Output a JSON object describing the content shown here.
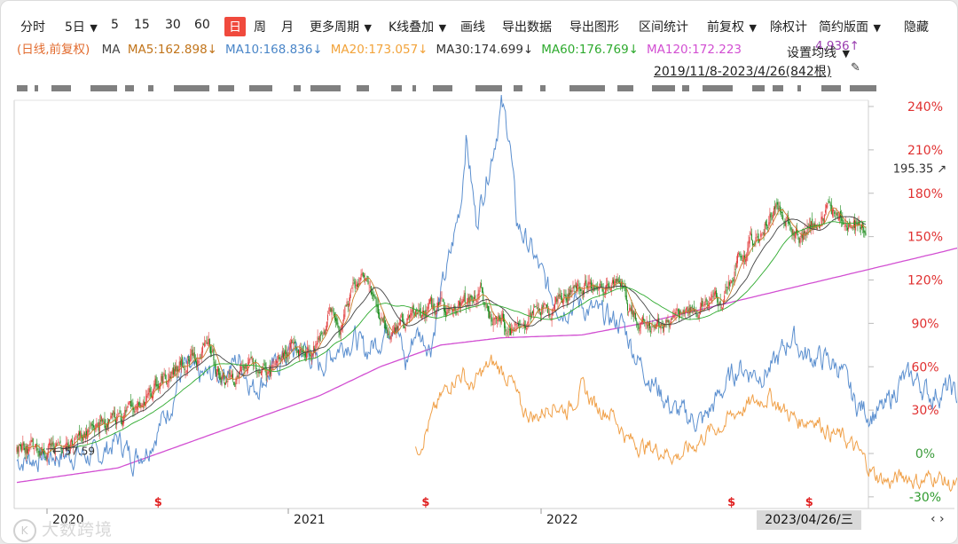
{
  "toolbar": {
    "items": [
      {
        "label": "分时",
        "dd": false,
        "active": false
      },
      {
        "label": "5日",
        "dd": true,
        "active": false
      },
      {
        "label": "5",
        "dd": false,
        "active": false
      },
      {
        "label": "15",
        "dd": false,
        "active": false
      },
      {
        "label": "30",
        "dd": false,
        "active": false
      },
      {
        "label": "60",
        "dd": false,
        "active": false
      },
      {
        "label": "日",
        "dd": false,
        "active": true
      },
      {
        "label": "周",
        "dd": false,
        "active": false
      },
      {
        "label": "月",
        "dd": false,
        "active": false
      },
      {
        "label": "更多周期",
        "dd": true,
        "active": false
      },
      {
        "label": "K线叠加",
        "dd": true,
        "active": false
      },
      {
        "label": "画线",
        "dd": false,
        "active": false
      },
      {
        "label": "导出数据",
        "dd": false,
        "active": false
      },
      {
        "label": "导出图形",
        "dd": false,
        "active": false
      },
      {
        "label": "区间统计",
        "dd": false,
        "active": false
      },
      {
        "label": "前复权",
        "dd": true,
        "active": false
      },
      {
        "label": "除权计",
        "dd": false,
        "active": false
      },
      {
        "label": "简约版面",
        "dd": true,
        "active": false
      },
      {
        "label": "隐藏",
        "dd": false,
        "active": false
      }
    ]
  },
  "indicators": {
    "mode": "(日线,前复权)",
    "ma_label": "MA",
    "items": [
      {
        "text": "MA5:162.898↓",
        "color": "#c1741a"
      },
      {
        "text": "MA10:168.836↓",
        "color": "#4a86c8"
      },
      {
        "text": "MA20:173.057↓",
        "color": "#f2a33a"
      },
      {
        "text": "MA30:174.699↓",
        "color": "#333333"
      },
      {
        "text": "MA60:176.769↓",
        "color": "#2eaa2e"
      },
      {
        "text": "MA120:172.223",
        "color": "#d24fd2"
      }
    ],
    "ma_tail": "4.936↑",
    "tail_color": "#9a3fb0",
    "set_ma": "设置均线",
    "range": "2019/11/8-2023/4/26(842根)",
    "pin_icon": "📌"
  },
  "colors": {
    "up": "#e23c3c",
    "down": "#1a8a1a",
    "overlay1": "#5b8fcf",
    "overlay2": "#f0a048",
    "ma120": "#d24fd2",
    "grid": "#e2e2e2"
  },
  "chart_data": {
    "type": "line",
    "title": "",
    "ylabel": "",
    "ytick_labels": [
      "240%",
      "210%",
      "180%",
      "150%",
      "120%",
      "90%",
      "60%",
      "30%",
      "0%",
      "-30%"
    ],
    "yticks": [
      240,
      210,
      180,
      150,
      120,
      90,
      60,
      30,
      0,
      -30
    ],
    "ylim": [
      -35,
      250
    ],
    "xtick_labels": [
      "2020",
      "2021",
      "2022"
    ],
    "bars": 842,
    "annotations": {
      "high": "195.35",
      "low": "57.59"
    },
    "dividend_marks": [
      {
        "label": "$",
        "bar": 140
      },
      {
        "label": "$",
        "bar": 405
      },
      {
        "label": "$",
        "bar": 708
      },
      {
        "label": "$",
        "bar": 785
      }
    ],
    "series": [
      {
        "name": "main",
        "kind": "candlestick",
        "keypoints": [
          [
            0,
            2
          ],
          [
            40,
            4
          ],
          [
            80,
            20
          ],
          [
            120,
            28
          ],
          [
            150,
            55
          ],
          [
            170,
            65
          ],
          [
            190,
            72
          ],
          [
            205,
            48
          ],
          [
            235,
            62
          ],
          [
            250,
            55
          ],
          [
            270,
            72
          ],
          [
            290,
            70
          ],
          [
            310,
            95
          ],
          [
            320,
            90
          ],
          [
            330,
            110
          ],
          [
            345,
            120
          ],
          [
            355,
            103
          ],
          [
            370,
            85
          ],
          [
            390,
            92
          ],
          [
            410,
            98
          ],
          [
            430,
            100
          ],
          [
            445,
            105
          ],
          [
            460,
            110
          ],
          [
            470,
            97
          ],
          [
            490,
            85
          ],
          [
            500,
            90
          ],
          [
            520,
            100
          ],
          [
            540,
            105
          ],
          [
            560,
            120
          ],
          [
            580,
            112
          ],
          [
            595,
            125
          ],
          [
            608,
            95
          ],
          [
            620,
            88
          ],
          [
            635,
            90
          ],
          [
            650,
            92
          ],
          [
            670,
            100
          ],
          [
            685,
            102
          ],
          [
            700,
            110
          ],
          [
            715,
            135
          ],
          [
            735,
            150
          ],
          [
            750,
            172
          ],
          [
            760,
            165
          ],
          [
            775,
            150
          ],
          [
            790,
            160
          ],
          [
            805,
            165
          ],
          [
            820,
            160
          ],
          [
            835,
            158
          ],
          [
            850,
            155
          ],
          [
            865,
            158
          ],
          [
            880,
            165
          ],
          [
            895,
            170
          ],
          [
            910,
            190
          ],
          [
            925,
            180
          ],
          [
            940,
            175
          ],
          [
            955,
            168
          ],
          [
            975,
            140
          ]
        ]
      },
      {
        "name": "overlay1",
        "kind": "line",
        "keypoints": [
          [
            0,
            -5
          ],
          [
            60,
            0
          ],
          [
            80,
            -3
          ],
          [
            100,
            10
          ],
          [
            115,
            -3
          ],
          [
            130,
            5
          ],
          [
            150,
            30
          ],
          [
            165,
            60
          ],
          [
            180,
            52
          ],
          [
            200,
            55
          ],
          [
            220,
            65
          ],
          [
            235,
            45
          ],
          [
            250,
            55
          ],
          [
            270,
            70
          ],
          [
            285,
            72
          ],
          [
            300,
            60
          ],
          [
            320,
            75
          ],
          [
            335,
            80
          ],
          [
            345,
            70
          ],
          [
            360,
            80
          ],
          [
            375,
            95
          ],
          [
            385,
            60
          ],
          [
            395,
            85
          ],
          [
            410,
            75
          ],
          [
            420,
            110
          ],
          [
            430,
            138
          ],
          [
            440,
            175
          ],
          [
            445,
            220
          ],
          [
            455,
            160
          ],
          [
            470,
            205
          ],
          [
            480,
            240
          ],
          [
            488,
            220
          ],
          [
            495,
            160
          ],
          [
            510,
            140
          ],
          [
            525,
            115
          ],
          [
            540,
            100
          ],
          [
            555,
            105
          ],
          [
            565,
            100
          ],
          [
            580,
            95
          ],
          [
            600,
            90
          ],
          [
            615,
            65
          ],
          [
            630,
            50
          ],
          [
            650,
            30
          ],
          [
            665,
            25
          ],
          [
            680,
            22
          ],
          [
            700,
            45
          ],
          [
            715,
            60
          ],
          [
            735,
            55
          ],
          [
            750,
            60
          ],
          [
            768,
            82
          ],
          [
            780,
            68
          ],
          [
            800,
            65
          ],
          [
            815,
            60
          ],
          [
            830,
            35
          ],
          [
            845,
            28
          ],
          [
            860,
            30
          ],
          [
            875,
            50
          ],
          [
            890,
            52
          ],
          [
            905,
            40
          ],
          [
            925,
            45
          ],
          [
            940,
            30
          ],
          [
            958,
            28
          ],
          [
            975,
            5
          ]
        ]
      },
      {
        "name": "overlay2",
        "kind": "line",
        "keypoints": [
          [
            395,
            0
          ],
          [
            408,
            20
          ],
          [
            420,
            38
          ],
          [
            432,
            52
          ],
          [
            442,
            55
          ],
          [
            450,
            45
          ],
          [
            460,
            55
          ],
          [
            470,
            62
          ],
          [
            480,
            58
          ],
          [
            490,
            50
          ],
          [
            500,
            30
          ],
          [
            515,
            25
          ],
          [
            530,
            35
          ],
          [
            545,
            30
          ],
          [
            560,
            45
          ],
          [
            575,
            32
          ],
          [
            590,
            28
          ],
          [
            605,
            10
          ],
          [
            620,
            5
          ],
          [
            640,
            2
          ],
          [
            655,
            -2
          ],
          [
            670,
            5
          ],
          [
            685,
            15
          ],
          [
            700,
            20
          ],
          [
            715,
            30
          ],
          [
            730,
            35
          ],
          [
            745,
            40
          ],
          [
            760,
            30
          ],
          [
            775,
            22
          ],
          [
            790,
            25
          ],
          [
            805,
            15
          ],
          [
            820,
            10
          ],
          [
            835,
            0
          ],
          [
            850,
            -15
          ],
          [
            865,
            -20
          ],
          [
            880,
            -15
          ],
          [
            895,
            -20
          ],
          [
            910,
            -15
          ],
          [
            925,
            -22
          ],
          [
            940,
            -25
          ],
          [
            958,
            -25
          ],
          [
            975,
            -35
          ]
        ]
      },
      {
        "name": "MA120",
        "kind": "line",
        "keypoints": [
          [
            0,
            -20
          ],
          [
            100,
            -10
          ],
          [
            200,
            15
          ],
          [
            300,
            40
          ],
          [
            360,
            60
          ],
          [
            420,
            75
          ],
          [
            480,
            80
          ],
          [
            560,
            82
          ],
          [
            620,
            90
          ],
          [
            680,
            100
          ],
          [
            740,
            110
          ],
          [
            800,
            120
          ],
          [
            860,
            130
          ],
          [
            920,
            140
          ],
          [
            975,
            150
          ]
        ]
      }
    ]
  }
}
